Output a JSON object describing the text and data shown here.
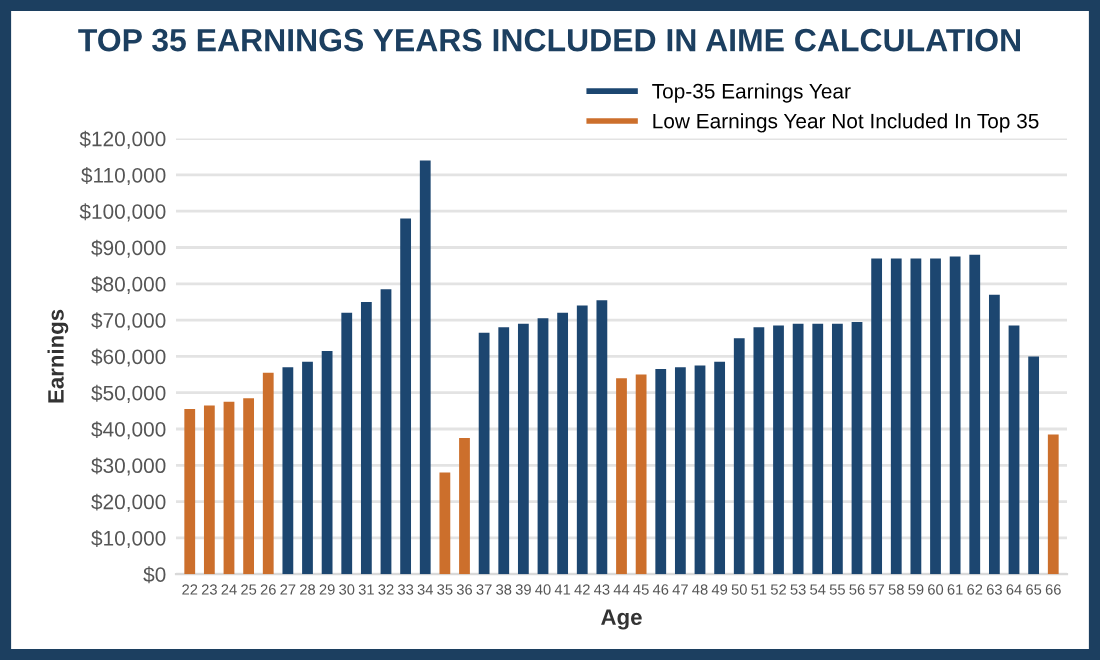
{
  "chart_data": {
    "type": "bar",
    "title": "TOP 35 EARNINGS YEARS INCLUDED IN AIME CALCULATION",
    "xlabel": "Age",
    "ylabel": "Earnings",
    "categories": [
      "22",
      "23",
      "24",
      "25",
      "26",
      "27",
      "28",
      "29",
      "30",
      "31",
      "32",
      "33",
      "34",
      "35",
      "36",
      "37",
      "38",
      "39",
      "40",
      "41",
      "42",
      "43",
      "44",
      "45",
      "46",
      "47",
      "48",
      "49",
      "50",
      "51",
      "52",
      "53",
      "54",
      "55",
      "56",
      "57",
      "58",
      "59",
      "60",
      "61",
      "62",
      "63",
      "64",
      "65",
      "66"
    ],
    "series": [
      {
        "name": "Top-35 Earnings Year",
        "color": "#1c4670",
        "values": [
          null,
          null,
          null,
          null,
          null,
          57000,
          58500,
          61500,
          72000,
          75000,
          78500,
          98000,
          114000,
          null,
          null,
          66500,
          68000,
          69000,
          70500,
          72000,
          74000,
          75500,
          null,
          null,
          56500,
          57000,
          57500,
          58500,
          65000,
          68000,
          68500,
          69000,
          69000,
          69000,
          69500,
          87000,
          87000,
          87000,
          87000,
          87500,
          88000,
          77000,
          68500,
          60000,
          null
        ]
      },
      {
        "name": "Low Earnings Year Not Included In Top 35",
        "color": "#cc6f2c",
        "values": [
          45500,
          46500,
          47500,
          48500,
          55500,
          null,
          null,
          null,
          null,
          null,
          null,
          null,
          null,
          28000,
          37500,
          null,
          null,
          null,
          null,
          null,
          null,
          null,
          54000,
          55000,
          null,
          null,
          null,
          null,
          null,
          null,
          null,
          null,
          null,
          null,
          null,
          null,
          null,
          null,
          null,
          null,
          null,
          null,
          null,
          null,
          38500
        ]
      }
    ],
    "ylim": [
      0,
      120000
    ],
    "yticks": [
      {
        "value": 0,
        "label": "$0"
      },
      {
        "value": 10000,
        "label": "$10,000"
      },
      {
        "value": 20000,
        "label": "$20,000"
      },
      {
        "value": 30000,
        "label": "$30,000"
      },
      {
        "value": 40000,
        "label": "$40,000"
      },
      {
        "value": 50000,
        "label": "$50,000"
      },
      {
        "value": 60000,
        "label": "$60,000"
      },
      {
        "value": 70000,
        "label": "$70,000"
      },
      {
        "value": 80000,
        "label": "$80,000"
      },
      {
        "value": 90000,
        "label": "$90,000"
      },
      {
        "value": 100000,
        "label": "$100,000"
      },
      {
        "value": 110000,
        "label": "$110,000"
      },
      {
        "value": 120000,
        "label": "$120,000"
      }
    ],
    "grid": "y",
    "legend": "top right"
  }
}
